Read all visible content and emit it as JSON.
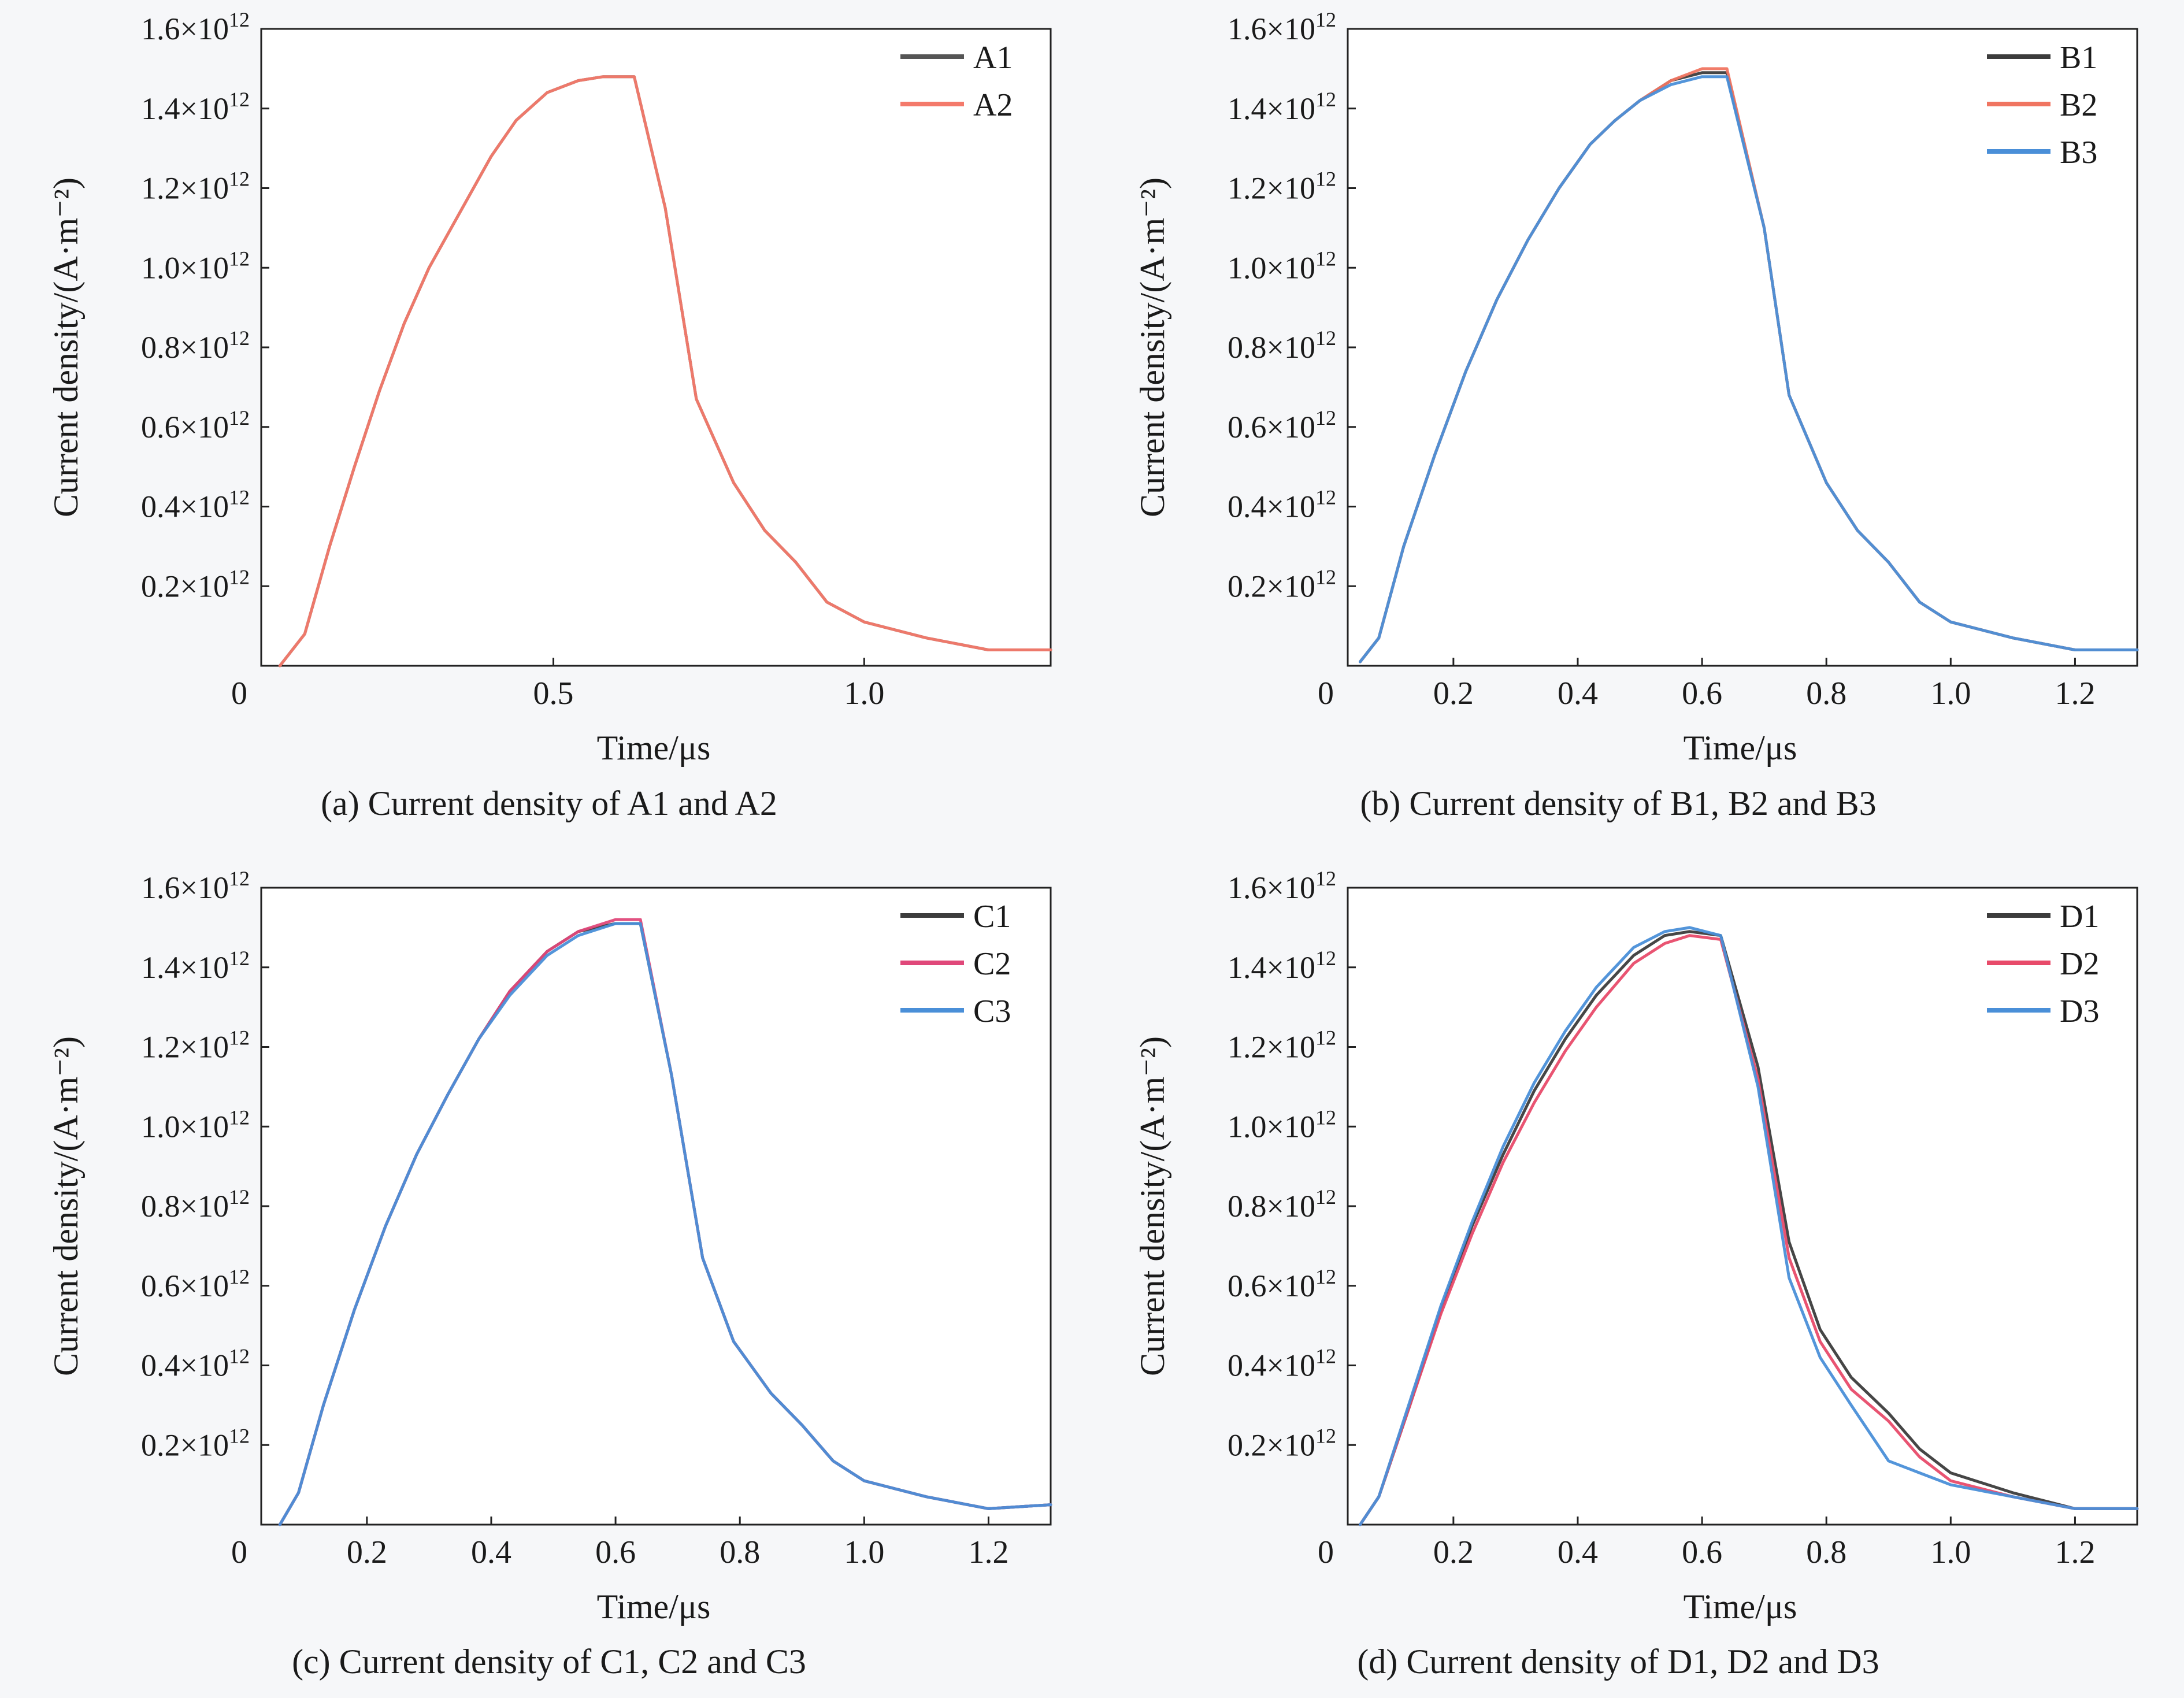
{
  "chart_data": [
    {
      "type": "line",
      "caption": "(a) Current density of A1 and A2",
      "xlabel": "Time/μs",
      "ylabel": "Current density/(A·m⁻²)",
      "xlim": [
        0.03,
        1.3
      ],
      "ylim": [
        0,
        1.6
      ],
      "xticks": [
        0.5,
        1.0
      ],
      "xticklabels": [
        "0.5",
        "1.0"
      ],
      "yticks": [
        0.2,
        0.4,
        0.6,
        0.8,
        1.0,
        1.2,
        1.4,
        1.6
      ],
      "yticklabels": [
        "0.2",
        "0.4",
        "0.6",
        "0.8",
        "1.0",
        "1.2",
        "1.4",
        "1.6"
      ],
      "ytick_suffix": "×10",
      "ytick_exponent": "12",
      "origin_label": "0",
      "legend_position": "top-right",
      "series": [
        {
          "name": "A1",
          "color": "#555555",
          "x": [
            0.06,
            0.1,
            0.14,
            0.18,
            0.22,
            0.26,
            0.3,
            0.35,
            0.4,
            0.44,
            0.49,
            0.54,
            0.58,
            0.63,
            0.68,
            0.73,
            0.79,
            0.84,
            0.89,
            0.94,
            1.0,
            1.1,
            1.2,
            1.3
          ],
          "y": [
            0.0,
            0.08,
            0.3,
            0.5,
            0.69,
            0.86,
            1.0,
            1.14,
            1.28,
            1.37,
            1.44,
            1.47,
            1.48,
            1.48,
            1.15,
            0.67,
            0.46,
            0.34,
            0.26,
            0.16,
            0.11,
            0.07,
            0.04,
            0.04
          ]
        },
        {
          "name": "A2",
          "color": "#f47a6b",
          "x": [
            0.06,
            0.1,
            0.14,
            0.18,
            0.22,
            0.26,
            0.3,
            0.35,
            0.4,
            0.44,
            0.49,
            0.54,
            0.58,
            0.63,
            0.68,
            0.73,
            0.79,
            0.84,
            0.89,
            0.94,
            1.0,
            1.1,
            1.2,
            1.3
          ],
          "y": [
            0.0,
            0.08,
            0.3,
            0.5,
            0.69,
            0.86,
            1.0,
            1.14,
            1.28,
            1.37,
            1.44,
            1.47,
            1.48,
            1.48,
            1.15,
            0.67,
            0.46,
            0.34,
            0.26,
            0.16,
            0.11,
            0.07,
            0.04,
            0.04
          ]
        }
      ]
    },
    {
      "type": "line",
      "caption": "(b) Current density of B1, B2 and B3",
      "xlabel": "Time/μs",
      "ylabel": "Current density/(A·m⁻²)",
      "xlim": [
        0.03,
        1.3
      ],
      "ylim": [
        0,
        1.6
      ],
      "xticks": [
        0.2,
        0.4,
        0.6,
        0.8,
        1.0,
        1.2
      ],
      "xticklabels": [
        "0.2",
        "0.4",
        "0.6",
        "0.8",
        "1.0",
        "1.2"
      ],
      "yticks": [
        0.2,
        0.4,
        0.6,
        0.8,
        1.0,
        1.2,
        1.4,
        1.6
      ],
      "yticklabels": [
        "0.2",
        "0.4",
        "0.6",
        "0.8",
        "1.0",
        "1.2",
        "1.4",
        "1.6"
      ],
      "ytick_suffix": "×10",
      "ytick_exponent": "12",
      "origin_label": "0",
      "legend_position": "top-right",
      "series": [
        {
          "name": "B1",
          "color": "#3c3c3c",
          "x": [
            0.05,
            0.08,
            0.12,
            0.17,
            0.22,
            0.27,
            0.32,
            0.37,
            0.42,
            0.46,
            0.5,
            0.55,
            0.6,
            0.64,
            0.7,
            0.74,
            0.8,
            0.85,
            0.9,
            0.95,
            1.0,
            1.1,
            1.2,
            1.3
          ],
          "y": [
            0.01,
            0.07,
            0.3,
            0.53,
            0.74,
            0.92,
            1.07,
            1.2,
            1.31,
            1.37,
            1.42,
            1.47,
            1.49,
            1.49,
            1.1,
            0.68,
            0.46,
            0.34,
            0.26,
            0.16,
            0.11,
            0.07,
            0.04,
            0.04
          ]
        },
        {
          "name": "B2",
          "color": "#f07561",
          "x": [
            0.05,
            0.08,
            0.12,
            0.17,
            0.22,
            0.27,
            0.32,
            0.37,
            0.42,
            0.46,
            0.5,
            0.55,
            0.6,
            0.64,
            0.7,
            0.74,
            0.8,
            0.85,
            0.9,
            0.95,
            1.0,
            1.1,
            1.2,
            1.3
          ],
          "y": [
            0.01,
            0.07,
            0.3,
            0.53,
            0.74,
            0.92,
            1.07,
            1.2,
            1.31,
            1.37,
            1.42,
            1.47,
            1.5,
            1.5,
            1.1,
            0.68,
            0.46,
            0.34,
            0.26,
            0.16,
            0.11,
            0.07,
            0.04,
            0.04
          ]
        },
        {
          "name": "B3",
          "color": "#4a8fd8",
          "x": [
            0.05,
            0.08,
            0.12,
            0.17,
            0.22,
            0.27,
            0.32,
            0.37,
            0.42,
            0.46,
            0.5,
            0.55,
            0.6,
            0.64,
            0.7,
            0.74,
            0.8,
            0.85,
            0.9,
            0.95,
            1.0,
            1.1,
            1.2,
            1.3
          ],
          "y": [
            0.01,
            0.07,
            0.3,
            0.53,
            0.74,
            0.92,
            1.07,
            1.2,
            1.31,
            1.37,
            1.42,
            1.46,
            1.48,
            1.48,
            1.1,
            0.68,
            0.46,
            0.34,
            0.26,
            0.16,
            0.11,
            0.07,
            0.04,
            0.04
          ]
        }
      ]
    },
    {
      "type": "line",
      "caption": "(c) Current density of C1, C2 and C3",
      "xlabel": "Time/μs",
      "ylabel": "Current density/(A·m⁻²)",
      "xlim": [
        0.03,
        1.3
      ],
      "ylim": [
        0,
        1.6
      ],
      "xticks": [
        0.2,
        0.4,
        0.6,
        0.8,
        1.0,
        1.2
      ],
      "xticklabels": [
        "0.2",
        "0.4",
        "0.6",
        "0.8",
        "1.0",
        "1.2"
      ],
      "yticks": [
        0.2,
        0.4,
        0.6,
        0.8,
        1.0,
        1.2,
        1.4,
        1.6
      ],
      "yticklabels": [
        "0.2",
        "0.4",
        "0.6",
        "0.8",
        "1.0",
        "1.2",
        "1.4",
        "1.6"
      ],
      "ytick_suffix": "×10",
      "ytick_exponent": "12",
      "origin_label": "0",
      "legend_position": "top-right",
      "series": [
        {
          "name": "C1",
          "color": "#3c3c3c",
          "x": [
            0.06,
            0.09,
            0.13,
            0.18,
            0.23,
            0.28,
            0.33,
            0.38,
            0.43,
            0.49,
            0.54,
            0.6,
            0.64,
            0.69,
            0.74,
            0.79,
            0.85,
            0.9,
            0.95,
            1.0,
            1.1,
            1.2,
            1.3
          ],
          "y": [
            0.0,
            0.08,
            0.3,
            0.54,
            0.75,
            0.93,
            1.08,
            1.22,
            1.34,
            1.44,
            1.49,
            1.51,
            1.51,
            1.13,
            0.67,
            0.46,
            0.33,
            0.25,
            0.16,
            0.11,
            0.07,
            0.04,
            0.05
          ]
        },
        {
          "name": "C2",
          "color": "#e0487a",
          "x": [
            0.06,
            0.09,
            0.13,
            0.18,
            0.23,
            0.28,
            0.33,
            0.38,
            0.43,
            0.49,
            0.54,
            0.6,
            0.64,
            0.69,
            0.74,
            0.79,
            0.85,
            0.9,
            0.95,
            1.0,
            1.1,
            1.2,
            1.3
          ],
          "y": [
            0.0,
            0.08,
            0.3,
            0.54,
            0.75,
            0.93,
            1.08,
            1.22,
            1.34,
            1.44,
            1.49,
            1.52,
            1.52,
            1.13,
            0.67,
            0.46,
            0.33,
            0.25,
            0.16,
            0.11,
            0.07,
            0.04,
            0.05
          ]
        },
        {
          "name": "C3",
          "color": "#4a8fd8",
          "x": [
            0.06,
            0.09,
            0.13,
            0.18,
            0.23,
            0.28,
            0.33,
            0.38,
            0.43,
            0.49,
            0.54,
            0.6,
            0.64,
            0.69,
            0.74,
            0.79,
            0.85,
            0.9,
            0.95,
            1.0,
            1.1,
            1.2,
            1.3
          ],
          "y": [
            0.0,
            0.08,
            0.3,
            0.54,
            0.75,
            0.93,
            1.08,
            1.22,
            1.33,
            1.43,
            1.48,
            1.51,
            1.51,
            1.13,
            0.67,
            0.46,
            0.33,
            0.25,
            0.16,
            0.11,
            0.07,
            0.04,
            0.05
          ]
        }
      ]
    },
    {
      "type": "line",
      "caption": "(d) Current density of D1, D2 and D3",
      "xlabel": "Time/μs",
      "ylabel": "Current density/(A·m⁻²)",
      "xlim": [
        0.03,
        1.3
      ],
      "ylim": [
        0,
        1.6
      ],
      "xticks": [
        0.2,
        0.4,
        0.6,
        0.8,
        1.0,
        1.2
      ],
      "xticklabels": [
        "0.2",
        "0.4",
        "0.6",
        "0.8",
        "1.0",
        "1.2"
      ],
      "yticks": [
        0.2,
        0.4,
        0.6,
        0.8,
        1.0,
        1.2,
        1.4,
        1.6
      ],
      "yticklabels": [
        "0.2",
        "0.4",
        "0.6",
        "0.8",
        "1.0",
        "1.2",
        "1.4",
        "1.6"
      ],
      "ytick_suffix": "×10",
      "ytick_exponent": "12",
      "origin_label": "0",
      "legend_position": "top-right",
      "series": [
        {
          "name": "D1",
          "color": "#3c3c3c",
          "x": [
            0.05,
            0.08,
            0.13,
            0.18,
            0.23,
            0.28,
            0.33,
            0.38,
            0.43,
            0.49,
            0.54,
            0.58,
            0.63,
            0.69,
            0.74,
            0.79,
            0.84,
            0.9,
            0.95,
            1.0,
            1.1,
            1.2,
            1.3
          ],
          "y": [
            0.0,
            0.07,
            0.3,
            0.54,
            0.75,
            0.93,
            1.09,
            1.22,
            1.33,
            1.43,
            1.48,
            1.49,
            1.48,
            1.15,
            0.71,
            0.49,
            0.37,
            0.28,
            0.19,
            0.13,
            0.08,
            0.04,
            0.04
          ]
        },
        {
          "name": "D2",
          "color": "#e84b6a",
          "x": [
            0.05,
            0.08,
            0.13,
            0.18,
            0.23,
            0.28,
            0.33,
            0.38,
            0.43,
            0.49,
            0.54,
            0.58,
            0.63,
            0.69,
            0.74,
            0.79,
            0.84,
            0.9,
            0.95,
            1.0,
            1.1,
            1.2,
            1.3
          ],
          "y": [
            0.0,
            0.07,
            0.3,
            0.53,
            0.73,
            0.91,
            1.06,
            1.19,
            1.3,
            1.41,
            1.46,
            1.48,
            1.47,
            1.12,
            0.67,
            0.46,
            0.34,
            0.26,
            0.17,
            0.11,
            0.07,
            0.04,
            0.04
          ]
        },
        {
          "name": "D3",
          "color": "#4a8fd8",
          "x": [
            0.05,
            0.08,
            0.13,
            0.18,
            0.23,
            0.28,
            0.33,
            0.38,
            0.43,
            0.49,
            0.54,
            0.58,
            0.63,
            0.69,
            0.74,
            0.79,
            0.84,
            0.9,
            0.95,
            1.0,
            1.1,
            1.2,
            1.3
          ],
          "y": [
            0.0,
            0.07,
            0.31,
            0.55,
            0.76,
            0.95,
            1.11,
            1.24,
            1.35,
            1.45,
            1.49,
            1.5,
            1.48,
            1.1,
            0.62,
            0.42,
            0.3,
            0.16,
            0.13,
            0.1,
            0.07,
            0.04,
            0.04
          ]
        }
      ]
    }
  ]
}
